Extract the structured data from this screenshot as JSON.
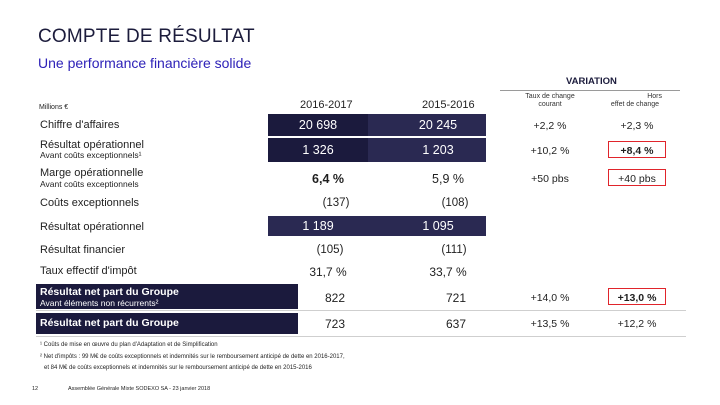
{
  "header": {
    "title": "COMPTE DE RÉSULTAT",
    "subtitle": "Une performance financière solide"
  },
  "table": {
    "units": "Millions €",
    "variation_label": "VARIATION",
    "columns": {
      "y2017": "2016-2017",
      "y2016": "2015-2016",
      "fx_line1": "Taux de change",
      "fx_line2": "courant",
      "exfx_line1": "Hors",
      "exfx_line2": "effet de change"
    },
    "rows": {
      "ca": {
        "label": "Chiffre d'affaires",
        "v2017": "20 698",
        "v2016": "20 245",
        "fx": "+2,2 %",
        "exfx": "+2,3 %"
      },
      "ro": {
        "label": "Résultat opérationnel",
        "sublabel": "Avant coûts exceptionnels¹",
        "v2017": "1 326",
        "v2016": "1 203",
        "fx": "+10,2 %",
        "exfx": "+8,4 %"
      },
      "marge": {
        "label": "Marge opérationnelle",
        "sublabel": "Avant coûts exceptionnels",
        "v2017": "6,4 %",
        "v2016": "5,9 %",
        "fx": "+50 pbs",
        "exfx": "+40 pbs"
      },
      "ce": {
        "label": "Coûts exceptionnels",
        "v2017": "(137)",
        "v2016": "(108)"
      },
      "ro2": {
        "label": "Résultat opérationnel",
        "v2017": "1 189",
        "v2016": "1 095"
      },
      "rf": {
        "label": "Résultat financier",
        "v2017": "(105)",
        "v2016": "(111)"
      },
      "tei": {
        "label": "Taux effectif d'impôt",
        "v2017": "31,7 %",
        "v2016": "33,7 %"
      },
      "rn1": {
        "label": "Résultat net part du Groupe",
        "sublabel": "Avant éléments non récurrents²",
        "v2017": "822",
        "v2016": "721",
        "fx": "+14,0 %",
        "exfx": "+13,0 %"
      },
      "rn2": {
        "label": "Résultat net part du Groupe",
        "v2017": "723",
        "v2016": "637",
        "fx": "+13,5 %",
        "exfx": "+12,2 %"
      }
    }
  },
  "notes": {
    "n1": "¹ Coûts de mise en œuvre du plan d'Adaptation et de Simplification",
    "n2a": "² Net d'impôts : 99 M€ de coûts exceptionnels et indemnités sur le remboursement anticipé de dette en 2016-2017,",
    "n2b": "et 84 M€ de coûts exceptionnels et indemnités sur le remboursement anticipé de dette en 2015-2016"
  },
  "footer": {
    "page": "12",
    "text": "Assemblée Générale Mixte SODEXO SA - 23 janvier 2018"
  },
  "colors": {
    "navy": "#1b1a3d",
    "accent_blue": "#2e22b8",
    "highlight_red": "#e0242b"
  }
}
